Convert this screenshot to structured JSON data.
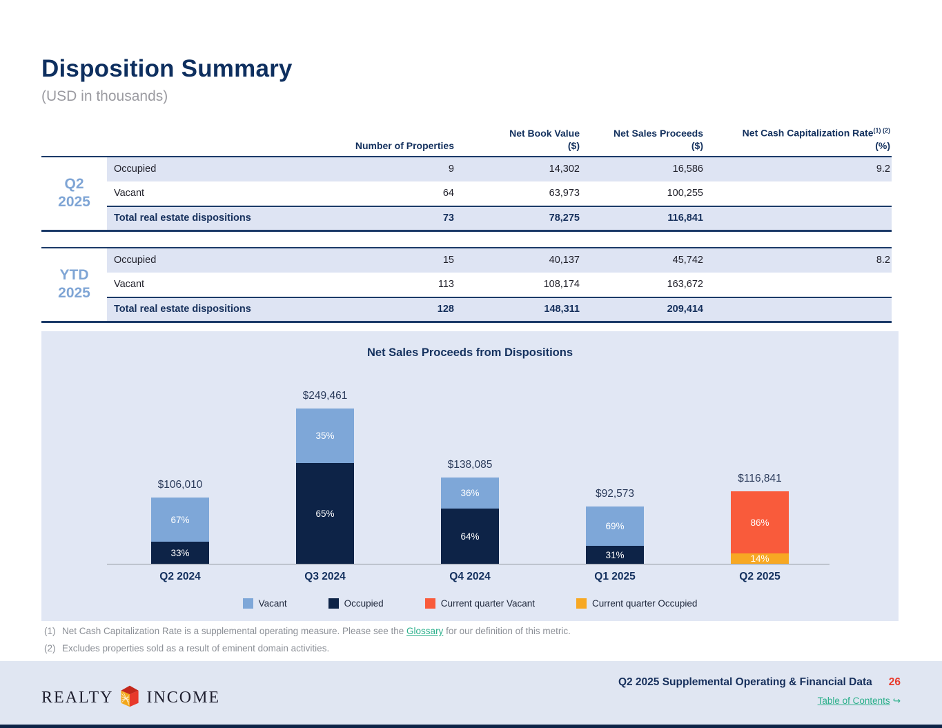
{
  "page": {
    "title": "Disposition Summary",
    "subtitle": "(USD in thousands)"
  },
  "table": {
    "headers": {
      "properties": "Number of Properties",
      "nbv_line1": "Net Book Value",
      "nbv_line2": "($)",
      "nsp_line1": "Net Sales Proceeds",
      "nsp_line2": "($)",
      "rate_line1": "Net Cash Capitalization Rate",
      "rate_sup": "(1) (2)",
      "rate_line2": "(%)"
    },
    "groups": [
      {
        "label_line1": "Q2",
        "label_line2": "2025",
        "rows": [
          {
            "name": "Occupied",
            "properties": "9",
            "net_book_value": "14,302",
            "net_sales_proceeds": "16,586",
            "net_cash_cap_rate": "9.2",
            "shaded": true,
            "total": false
          },
          {
            "name": "Vacant",
            "properties": "64",
            "net_book_value": "63,973",
            "net_sales_proceeds": "100,255",
            "net_cash_cap_rate": "",
            "shaded": false,
            "total": false
          },
          {
            "name": "Total real estate dispositions",
            "properties": "73",
            "net_book_value": "78,275",
            "net_sales_proceeds": "116,841",
            "net_cash_cap_rate": "",
            "shaded": true,
            "total": true
          }
        ]
      },
      {
        "label_line1": "YTD",
        "label_line2": "2025",
        "rows": [
          {
            "name": "Occupied",
            "properties": "15",
            "net_book_value": "40,137",
            "net_sales_proceeds": "45,742",
            "net_cash_cap_rate": "8.2",
            "shaded": true,
            "total": false
          },
          {
            "name": "Vacant",
            "properties": "113",
            "net_book_value": "108,174",
            "net_sales_proceeds": "163,672",
            "net_cash_cap_rate": "",
            "shaded": false,
            "total": false
          },
          {
            "name": "Total real estate dispositions",
            "properties": "128",
            "net_book_value": "148,311",
            "net_sales_proceeds": "209,414",
            "net_cash_cap_rate": "",
            "shaded": true,
            "total": true
          }
        ]
      }
    ]
  },
  "chart_data": {
    "type": "bar",
    "stacked": true,
    "title": "Net Sales Proceeds from Dispositions",
    "categories": [
      "Q2 2024",
      "Q3 2024",
      "Q4 2024",
      "Q1 2025",
      "Q2 2025"
    ],
    "ymax": 249461,
    "grid": false,
    "legend_position": "bottom",
    "colors": {
      "Vacant": "#7EA7D8",
      "Occupied": "#0D2347",
      "Current quarter Vacant": "#F95B3B",
      "Current quarter Occupied": "#F7A823"
    },
    "bars": [
      {
        "category": "Q2 2024",
        "total": 106010,
        "label": "$106,010",
        "segments": [
          {
            "series": "Occupied",
            "pct": 33,
            "label": "33%"
          },
          {
            "series": "Vacant",
            "pct": 67,
            "label": "67%"
          }
        ]
      },
      {
        "category": "Q3 2024",
        "total": 249461,
        "label": "$249,461",
        "segments": [
          {
            "series": "Occupied",
            "pct": 65,
            "label": "65%"
          },
          {
            "series": "Vacant",
            "pct": 35,
            "label": "35%"
          }
        ]
      },
      {
        "category": "Q4 2024",
        "total": 138085,
        "label": "$138,085",
        "segments": [
          {
            "series": "Occupied",
            "pct": 64,
            "label": "64%"
          },
          {
            "series": "Vacant",
            "pct": 36,
            "label": "36%"
          }
        ]
      },
      {
        "category": "Q1 2025",
        "total": 92573,
        "label": "$92,573",
        "segments": [
          {
            "series": "Occupied",
            "pct": 31,
            "label": "31%"
          },
          {
            "series": "Vacant",
            "pct": 69,
            "label": "69%"
          }
        ]
      },
      {
        "category": "Q2 2025",
        "total": 116841,
        "label": "$116,841",
        "segments": [
          {
            "series": "Current quarter Occupied",
            "pct": 14,
            "label": "14%"
          },
          {
            "series": "Current quarter Vacant",
            "pct": 86,
            "label": "86%"
          }
        ]
      }
    ],
    "legend": [
      {
        "label": "Vacant",
        "color": "#7EA7D8"
      },
      {
        "label": "Occupied",
        "color": "#0D2347"
      },
      {
        "label": "Current quarter Vacant",
        "color": "#F95B3B"
      },
      {
        "label": "Current quarter Occupied",
        "color": "#F7A823"
      }
    ]
  },
  "footnotes": [
    {
      "marker": "(1)",
      "text_before": "Net Cash Capitalization Rate is a supplemental operating measure. Please see the ",
      "link": "Glossary",
      "text_after": " for our definition of this metric."
    },
    {
      "marker": "(2)",
      "text_before": "Excludes properties sold as a result of eminent domain activities.",
      "link": "",
      "text_after": ""
    }
  ],
  "footer": {
    "logo_left": "REALTY",
    "logo_right": "INCOME",
    "doc_title": "Q2 2025 Supplemental Operating & Financial Data",
    "page_number": "26",
    "toc_label": "Table of Contents",
    "toc_arrow": "↪"
  }
}
